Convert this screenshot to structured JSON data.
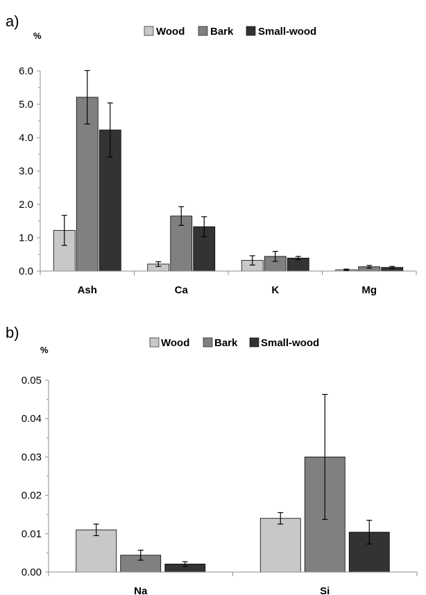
{
  "chart_data": [
    {
      "type": "bar",
      "panel_label": "a)",
      "ylabel": "%",
      "categories": [
        "Ash",
        "Ca",
        "K",
        "Mg"
      ],
      "ylim": [
        0,
        6.0
      ],
      "yticks": [
        "0.0",
        "1.0",
        "2.0",
        "3.0",
        "4.0",
        "5.0",
        "6.0"
      ],
      "ytick_values": [
        0,
        1,
        2,
        3,
        4,
        5,
        6
      ],
      "legend_position": "top-center",
      "series": [
        {
          "name": "Wood",
          "color": "#c8c8c8",
          "values": [
            1.22,
            0.21,
            0.32,
            0.04
          ],
          "errors": [
            0.45,
            0.07,
            0.14,
            0.02
          ]
        },
        {
          "name": "Bark",
          "color": "#808080",
          "values": [
            5.21,
            1.65,
            0.44,
            0.13
          ],
          "errors": [
            0.8,
            0.28,
            0.15,
            0.04
          ]
        },
        {
          "name": "Small-wood",
          "color": "#333333",
          "values": [
            4.23,
            1.33,
            0.39,
            0.11
          ],
          "errors": [
            0.81,
            0.3,
            0.05,
            0.03
          ]
        }
      ]
    },
    {
      "type": "bar",
      "panel_label": "b)",
      "ylabel": "%",
      "categories": [
        "Na",
        "Si"
      ],
      "ylim": [
        0,
        0.05
      ],
      "yticks": [
        "0.00",
        "0.01",
        "0.02",
        "0.03",
        "0.04",
        "0.05"
      ],
      "ytick_values": [
        0,
        0.01,
        0.02,
        0.03,
        0.04,
        0.05
      ],
      "legend_position": "top-center",
      "series": [
        {
          "name": "Wood",
          "color": "#c8c8c8",
          "values": [
            0.011,
            0.014
          ],
          "errors": [
            0.0015,
            0.0015
          ]
        },
        {
          "name": "Bark",
          "color": "#808080",
          "values": [
            0.0044,
            0.03
          ],
          "errors": [
            0.0013,
            0.0163
          ]
        },
        {
          "name": "Small-wood",
          "color": "#333333",
          "values": [
            0.0021,
            0.0104
          ],
          "errors": [
            0.0006,
            0.0031
          ]
        }
      ]
    }
  ]
}
